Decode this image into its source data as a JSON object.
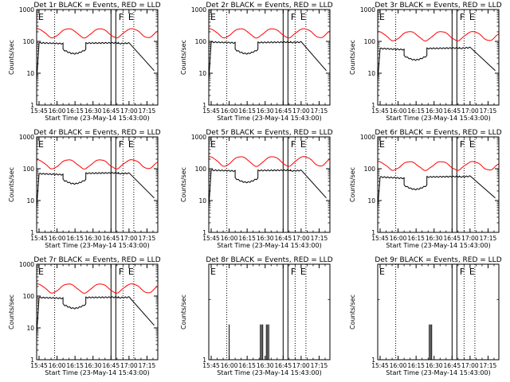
{
  "figure": {
    "colors": {
      "events": "#000000",
      "lld": "#ff0000",
      "axes": "#000000",
      "background": "#ffffff"
    },
    "x_ticks": [
      "15:45",
      "16:00",
      "16:15",
      "16:30",
      "16:45",
      "17:00",
      "17:15"
    ],
    "y_ticks": [
      "1",
      "10",
      "100",
      "1000"
    ]
  },
  "chart_data": [
    {
      "type": "line",
      "title": "Det 1r BLACK = Events, RED = LLD",
      "xlabel": "Start Time (23-May-14 15:43:00)",
      "ylabel": "Counts/sec",
      "y_scale": "log",
      "ylim": [
        1,
        1000
      ],
      "xlim": [
        "15:43",
        "17:24"
      ],
      "markers": [
        {
          "label": "E",
          "time": "15:43"
        },
        {
          "label": "F",
          "time": "16:50"
        },
        {
          "label": "E",
          "time": "16:58"
        }
      ],
      "dotted_lines": [
        "15:58",
        "16:55",
        "17:04"
      ],
      "box": [
        "16:45",
        "16:49"
      ],
      "lld": {
        "base": 130,
        "amp": 170
      },
      "events": {
        "start": "15:43",
        "end": "17:21",
        "segments": [
          [
            "15:45",
            "16:05",
            90,
            85
          ],
          [
            "16:05",
            "16:24",
            55,
            48
          ],
          [
            "16:24",
            "16:51",
            88,
            90
          ],
          [
            "16:51",
            "17:00",
            85,
            88
          ]
        ]
      },
      "series": [
        {
          "name": "Events"
        },
        {
          "name": "LLD"
        }
      ]
    },
    {
      "type": "line",
      "title": "Det 2r BLACK = Events, RED = LLD",
      "xlabel": "Start Time (23-May-14 15:43:00)",
      "ylabel": "Counts/sec",
      "y_scale": "log",
      "ylim": [
        1,
        1000
      ],
      "xlim": [
        "15:43",
        "17:24"
      ],
      "markers": [
        {
          "label": "E",
          "time": "15:43"
        },
        {
          "label": "F",
          "time": "16:50"
        },
        {
          "label": "E",
          "time": "16:58"
        }
      ],
      "dotted_lines": [
        "15:58",
        "16:55",
        "17:04"
      ],
      "box": [
        "16:45",
        "16:49"
      ],
      "lld": {
        "base": 130,
        "amp": 170
      },
      "events": {
        "start": "15:43",
        "end": "17:21",
        "segments": [
          [
            "15:45",
            "16:05",
            95,
            90
          ],
          [
            "16:05",
            "16:24",
            55,
            48
          ],
          [
            "16:24",
            "16:51",
            92,
            95
          ],
          [
            "16:51",
            "17:00",
            92,
            95
          ]
        ]
      },
      "series": [
        {
          "name": "Events"
        },
        {
          "name": "LLD"
        }
      ]
    },
    {
      "type": "line",
      "title": "Det 3r BLACK = Events, RED = LLD",
      "xlabel": "Start Time (23-May-14 15:43:00)",
      "ylabel": "Counts/sec",
      "y_scale": "log",
      "ylim": [
        1,
        1000
      ],
      "xlim": [
        "15:43",
        "17:24"
      ],
      "markers": [
        {
          "label": "E",
          "time": "15:43"
        },
        {
          "label": "F",
          "time": "16:50"
        },
        {
          "label": "E",
          "time": "16:58"
        }
      ],
      "dotted_lines": [
        "15:58",
        "16:55",
        "17:04"
      ],
      "box": [
        "16:45",
        "16:49"
      ],
      "lld": {
        "base": 105,
        "amp": 140
      },
      "events": {
        "start": "15:43",
        "end": "17:21",
        "segments": [
          [
            "15:45",
            "16:05",
            60,
            55
          ],
          [
            "16:05",
            "16:24",
            35,
            30
          ],
          [
            "16:24",
            "16:51",
            60,
            62
          ],
          [
            "16:51",
            "17:00",
            60,
            64
          ]
        ]
      },
      "series": [
        {
          "name": "Events"
        },
        {
          "name": "LLD"
        }
      ]
    },
    {
      "type": "line",
      "title": "Det 4r BLACK = Events, RED = LLD",
      "xlabel": "Start Time (23-May-14 15:43:00)",
      "ylabel": "Counts/sec",
      "y_scale": "log",
      "ylim": [
        1,
        1000
      ],
      "xlim": [
        "15:43",
        "17:24"
      ],
      "markers": [
        {
          "label": "E",
          "time": "15:43"
        },
        {
          "label": "F",
          "time": "16:50"
        },
        {
          "label": "E",
          "time": "16:58"
        }
      ],
      "dotted_lines": [
        "15:58",
        "16:55",
        "17:04"
      ],
      "box": [
        "16:45",
        "16:49"
      ],
      "lld": {
        "base": 100,
        "amp": 130
      },
      "events": {
        "start": "15:43",
        "end": "17:21",
        "segments": [
          [
            "15:45",
            "16:05",
            70,
            65
          ],
          [
            "16:05",
            "16:24",
            45,
            38
          ],
          [
            "16:24",
            "16:51",
            72,
            74
          ],
          [
            "16:51",
            "17:00",
            70,
            72
          ]
        ]
      },
      "series": [
        {
          "name": "Events"
        },
        {
          "name": "LLD"
        }
      ]
    },
    {
      "type": "line",
      "title": "Det 5r BLACK = Events, RED = LLD",
      "xlabel": "Start Time (23-May-14 15:43:00)",
      "ylabel": "Counts/sec",
      "y_scale": "log",
      "ylim": [
        1,
        1000
      ],
      "xlim": [
        "15:43",
        "17:24"
      ],
      "markers": [
        {
          "label": "E",
          "time": "15:43"
        },
        {
          "label": "F",
          "time": "16:50"
        },
        {
          "label": "E",
          "time": "16:58"
        }
      ],
      "dotted_lines": [
        "15:58",
        "16:55",
        "17:04"
      ],
      "box": [
        "16:45",
        "16:49"
      ],
      "lld": {
        "base": 120,
        "amp": 170
      },
      "events": {
        "start": "15:43",
        "end": "17:21",
        "segments": [
          [
            "15:45",
            "16:05",
            90,
            85
          ],
          [
            "16:05",
            "16:24",
            50,
            45
          ],
          [
            "16:24",
            "16:51",
            88,
            90
          ],
          [
            "16:51",
            "17:00",
            85,
            88
          ]
        ]
      },
      "series": [
        {
          "name": "Events"
        },
        {
          "name": "LLD"
        }
      ]
    },
    {
      "type": "line",
      "title": "Det 6r BLACK = Events, RED = LLD",
      "xlabel": "Start Time (23-May-14 15:43:00)",
      "ylabel": "Counts/sec",
      "y_scale": "log",
      "ylim": [
        1,
        1000
      ],
      "xlim": [
        "15:43",
        "17:24"
      ],
      "markers": [
        {
          "label": "E",
          "time": "15:43"
        },
        {
          "label": "F",
          "time": "16:50"
        },
        {
          "label": "E",
          "time": "16:58"
        }
      ],
      "dotted_lines": [
        "15:58",
        "16:55",
        "17:04"
      ],
      "box": [
        "16:45",
        "16:49"
      ],
      "lld": {
        "base": 90,
        "amp": 110
      },
      "events": {
        "start": "15:43",
        "end": "17:21",
        "segments": [
          [
            "15:45",
            "16:05",
            55,
            50
          ],
          [
            "16:05",
            "16:24",
            30,
            25
          ],
          [
            "16:24",
            "16:51",
            55,
            57
          ],
          [
            "16:51",
            "17:00",
            55,
            58
          ]
        ]
      },
      "series": [
        {
          "name": "Events"
        },
        {
          "name": "LLD"
        }
      ]
    },
    {
      "type": "line",
      "title": "Det 7r BLACK = Events, RED = LLD",
      "xlabel": "Start Time (23-May-14 15:43:00)",
      "ylabel": "Counts/sec",
      "y_scale": "log",
      "ylim": [
        1,
        1000
      ],
      "xlim": [
        "15:43",
        "17:24"
      ],
      "markers": [
        {
          "label": "E",
          "time": "15:43"
        },
        {
          "label": "F",
          "time": "16:50"
        },
        {
          "label": "E",
          "time": "16:58"
        }
      ],
      "dotted_lines": [
        "15:58",
        "16:55",
        "17:04"
      ],
      "box": [
        "16:45",
        "16:49"
      ],
      "lld": {
        "base": 125,
        "amp": 165
      },
      "events": {
        "start": "15:43",
        "end": "17:21",
        "segments": [
          [
            "15:45",
            "16:05",
            90,
            85
          ],
          [
            "16:05",
            "16:24",
            55,
            45
          ],
          [
            "16:24",
            "16:51",
            90,
            92
          ],
          [
            "16:51",
            "17:00",
            88,
            92
          ]
        ]
      },
      "series": [
        {
          "name": "Events"
        },
        {
          "name": "LLD"
        }
      ]
    },
    {
      "type": "line",
      "title": "Det 8r BLACK = Events, RED = LLD",
      "xlabel": "Start Time (23-May-14 15:43:00)",
      "ylabel": "Counts/sec",
      "y_scale": "log",
      "ylim": [
        1,
        3
      ],
      "xlim": [
        "15:43",
        "17:24"
      ],
      "y_tick_values": [
        1
      ],
      "markers": [
        {
          "label": "E",
          "time": "15:43"
        },
        {
          "label": "F",
          "time": "16:50"
        },
        {
          "label": "E",
          "time": "16:58"
        }
      ],
      "dotted_lines": [
        "15:58",
        "16:55",
        "17:04"
      ],
      "box": [
        "16:45",
        "16:49"
      ],
      "spikes": [
        [
          "16:00",
          1.5
        ],
        [
          "16:26",
          1.5
        ],
        [
          "16:27",
          1.5
        ],
        [
          "16:28",
          1.5
        ],
        [
          "16:31",
          1.5
        ],
        [
          "16:32",
          1.5
        ],
        [
          "16:33",
          1.5
        ]
      ],
      "series": [
        {
          "name": "Events"
        }
      ]
    },
    {
      "type": "line",
      "title": "Det 9r BLACK = Events, RED = LLD",
      "xlabel": "Start Time (23-May-14 15:43:00)",
      "ylabel": "Counts/sec",
      "y_scale": "log",
      "ylim": [
        1,
        3
      ],
      "xlim": [
        "15:43",
        "17:24"
      ],
      "y_tick_values": [
        1
      ],
      "markers": [
        {
          "label": "E",
          "time": "15:43"
        },
        {
          "label": "F",
          "time": "16:50"
        },
        {
          "label": "E",
          "time": "16:58"
        }
      ],
      "dotted_lines": [
        "15:58",
        "16:55",
        "17:04"
      ],
      "box": [
        "16:45",
        "16:49"
      ],
      "spikes": [
        [
          "16:26",
          1.5
        ],
        [
          "16:27",
          1.5
        ],
        [
          "16:28",
          1.5
        ]
      ],
      "series": [
        {
          "name": "Events"
        }
      ]
    }
  ]
}
